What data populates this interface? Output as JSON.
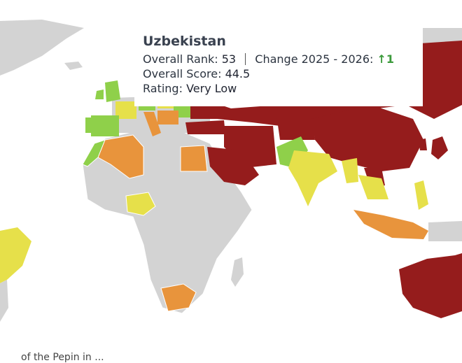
{
  "legend_colors": {
    "very_low": "#951c1c",
    "low": "#e8943c",
    "moderate": "#e6e04a",
    "high": "#8fd04a",
    "no_data": "#d3d3d3"
  },
  "tooltip": {
    "country": "Uzbekistan",
    "rank_label": "Overall Rank:",
    "rank_value": "53",
    "change_label": "Change 2025 - 2026:",
    "change_arrow": "↑",
    "change_value": "1",
    "score_label": "Overall Score:",
    "score_value": "44.5",
    "rating_label": "Rating:",
    "rating_value": "Very Low"
  },
  "footer_text": "of the Pepin in ..."
}
